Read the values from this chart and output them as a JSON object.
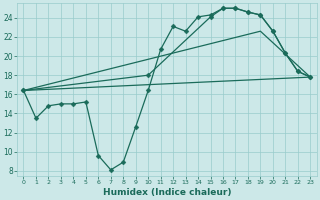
{
  "xlabel": "Humidex (Indice chaleur)",
  "bg_color": "#cce8e8",
  "grid_color": "#99cccc",
  "line_color": "#1a6b5a",
  "xlim": [
    -0.5,
    23.5
  ],
  "ylim": [
    7.5,
    25.5
  ],
  "xtick_vals": [
    0,
    1,
    2,
    3,
    4,
    5,
    6,
    7,
    8,
    9,
    10,
    11,
    12,
    13,
    14,
    15,
    16,
    17,
    18,
    19,
    20,
    21,
    22,
    23
  ],
  "ytick_vals": [
    8,
    10,
    12,
    14,
    16,
    18,
    20,
    22,
    24
  ],
  "series": [
    {
      "x": [
        0,
        1,
        2,
        3,
        4,
        5,
        6,
        7,
        8,
        9,
        10,
        11,
        12,
        13,
        14,
        15,
        16,
        17,
        18,
        19,
        20,
        21,
        22,
        23
      ],
      "y": [
        16.4,
        13.5,
        14.8,
        15.0,
        15.0,
        15.2,
        9.6,
        8.1,
        8.9,
        12.6,
        16.4,
        20.7,
        23.1,
        22.6,
        24.1,
        24.3,
        25.0,
        25.0,
        24.6,
        24.3,
        22.6,
        20.3,
        18.4,
        17.8
      ],
      "marker": "D",
      "markersize": 2.5,
      "linewidth": 0.9
    },
    {
      "x": [
        0,
        10,
        15,
        16,
        17,
        18,
        19,
        20,
        21,
        22,
        23
      ],
      "y": [
        16.4,
        18.0,
        24.1,
        25.0,
        25.0,
        24.6,
        24.3,
        22.6,
        20.3,
        18.4,
        17.8
      ],
      "marker": "D",
      "markersize": 2.5,
      "linewidth": 0.9
    },
    {
      "x": [
        0,
        23
      ],
      "y": [
        16.4,
        17.8
      ],
      "marker": null,
      "markersize": 0,
      "linewidth": 0.9
    },
    {
      "x": [
        0,
        19,
        23
      ],
      "y": [
        16.4,
        22.6,
        17.8
      ],
      "marker": null,
      "markersize": 0,
      "linewidth": 0.9
    }
  ]
}
